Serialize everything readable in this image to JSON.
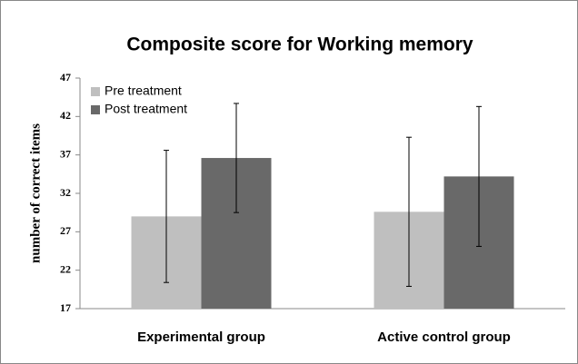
{
  "chart_data": {
    "type": "bar",
    "title": "Composite score for Working memory",
    "ylabel": "number of correct items",
    "categories": [
      "Experimental group",
      "Active control group"
    ],
    "series": [
      {
        "name": "Pre treatment",
        "color": "#bfbfbf",
        "values": [
          29.0,
          29.6
        ],
        "errors": [
          8.6,
          9.7
        ]
      },
      {
        "name": "Post treatment",
        "color": "#696969",
        "values": [
          36.6,
          34.2
        ],
        "errors": [
          7.1,
          9.1
        ]
      }
    ],
    "ylim": [
      17,
      47
    ],
    "yticks": [
      17,
      22,
      27,
      32,
      37,
      42,
      47
    ],
    "legend": "upper left"
  }
}
